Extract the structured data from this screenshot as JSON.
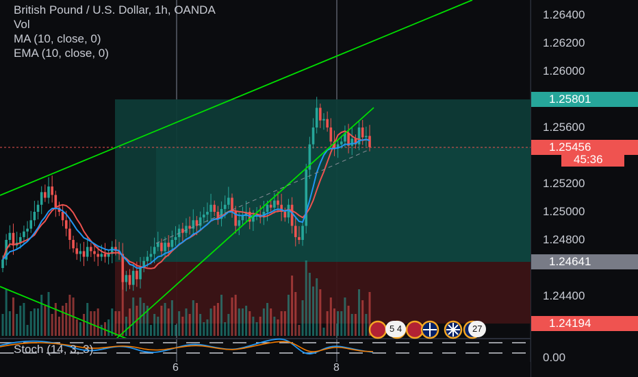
{
  "header": {
    "symbol_title": "British Pound / U.S. Dollar, 1h, OANDA",
    "indicators": [
      "Vol",
      "MA (10, close, 0)",
      "EMA (10, close, 0)"
    ]
  },
  "price_axis": {
    "ticks": [
      "1.26400",
      "1.26200",
      "1.26000",
      "1.25600",
      "1.25200",
      "1.25000",
      "1.24800",
      "1.24400",
      "0.00"
    ],
    "tags": {
      "target": "1.25801",
      "last": "1.25456",
      "countdown": "45:36",
      "entry": "1.24641",
      "stop": "1.24194"
    }
  },
  "time_axis": {
    "labels": [
      "6",
      "8"
    ]
  },
  "stochastic": {
    "label": "Stoch (14, 3, 3)"
  },
  "events": {
    "badge1": "5 4",
    "badge2": "27"
  },
  "colors": {
    "up": "#26a69a",
    "down": "#ef5350",
    "ma": "#ef5350",
    "ema": "#2196f3",
    "profit_zone": "#0e3b37",
    "loss_zone": "#3c1416",
    "trendline": "#00e000"
  },
  "chart_data": {
    "type": "candlestick",
    "symbol": "British Pound / U.S. Dollar",
    "interval": "1h",
    "ylim": [
      1.2418,
      1.2648
    ],
    "x_labels": [
      "6",
      "8"
    ],
    "position": {
      "target": 1.25801,
      "entry": 1.24641,
      "stop": 1.24194
    },
    "last_price": 1.25456,
    "close": [
      1.2466,
      1.248,
      1.2485,
      1.2476,
      1.2478,
      1.2482,
      1.2486,
      1.2488,
      1.2494,
      1.25,
      1.2505,
      1.2514,
      1.251,
      1.2518,
      1.2512,
      1.2503,
      1.25,
      1.2494,
      1.2488,
      1.248,
      1.2474,
      1.247,
      1.2472,
      1.2468,
      1.2475,
      1.2472,
      1.247,
      1.2468,
      1.247,
      1.2468,
      1.247,
      1.2475,
      1.2472,
      1.247,
      1.245,
      1.2455,
      1.2448,
      1.2458,
      1.2452,
      1.246,
      1.2465,
      1.2468,
      1.247,
      1.2475,
      1.2478,
      1.2472,
      1.2478,
      1.2475,
      1.248,
      1.2482,
      1.2488,
      1.2485,
      1.249,
      1.2488,
      1.2494,
      1.249,
      1.2496,
      1.2498,
      1.25,
      1.2505,
      1.25,
      1.2495,
      1.2502,
      1.2505,
      1.251,
      1.25,
      1.249,
      1.2494,
      1.2497,
      1.25,
      1.2493,
      1.2497,
      1.2498,
      1.2496,
      1.25,
      1.2505,
      1.2503,
      1.2508,
      1.2505,
      1.25,
      1.2496,
      1.2505,
      1.249,
      1.2482,
      1.248,
      1.249,
      1.253,
      1.2548,
      1.256,
      1.2574,
      1.2565,
      1.2566,
      1.256,
      1.255,
      1.2545,
      1.2548,
      1.255,
      1.2556,
      1.2547,
      1.2552,
      1.2548,
      1.256,
      1.2553,
      1.2554,
      1.2546
    ]
  }
}
